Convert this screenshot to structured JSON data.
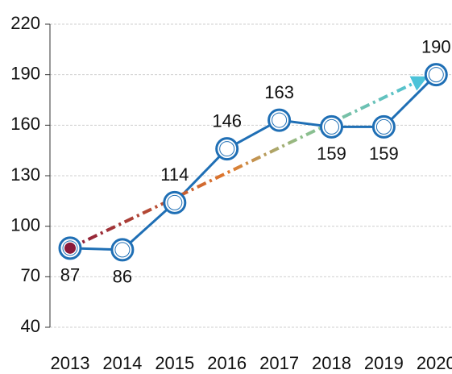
{
  "chart_data": {
    "type": "line",
    "categories": [
      "2013",
      "2014",
      "2015",
      "2016",
      "2017",
      "2018",
      "2019",
      "2020"
    ],
    "values": [
      87,
      86,
      114,
      146,
      163,
      159,
      159,
      190
    ],
    "color": "#1f6fb5",
    "ylim": [
      40,
      220
    ],
    "yticks": [
      40,
      70,
      100,
      130,
      160,
      190,
      220
    ],
    "grid": true
  }
}
